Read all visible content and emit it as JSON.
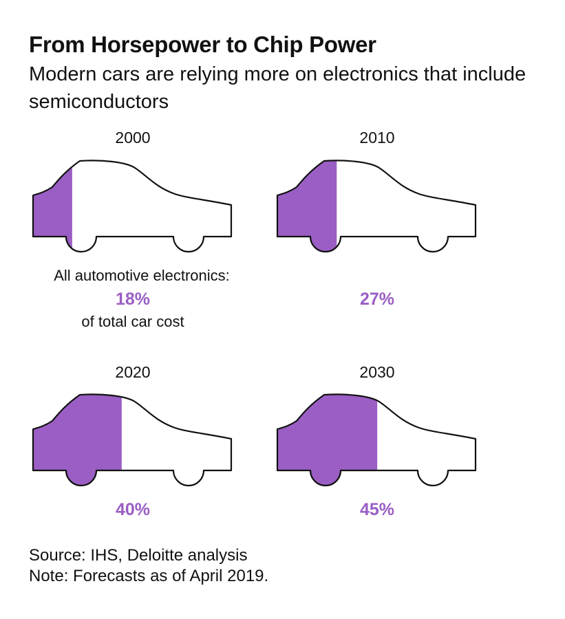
{
  "title": "From Horsepower to Chip Power",
  "subtitle": "Modern cars are relying more on electronics that include semiconductors",
  "annotation": {
    "top": "All automotive electronics:",
    "bottom": "of total car cost"
  },
  "footer": {
    "source": "Source: IHS, Deloitte analysis",
    "note": "Note: Forecasts as of April 2019."
  },
  "colors": {
    "fill": "#9a5ec4",
    "outline": "#111111",
    "text": "#111111"
  },
  "chart_data": {
    "type": "pictogram",
    "unit": "%",
    "categories": [
      "2000",
      "2010",
      "2020",
      "2030"
    ],
    "values": [
      18,
      27,
      40,
      45
    ],
    "labels": [
      "18%",
      "27%",
      "40%",
      "45%"
    ]
  }
}
